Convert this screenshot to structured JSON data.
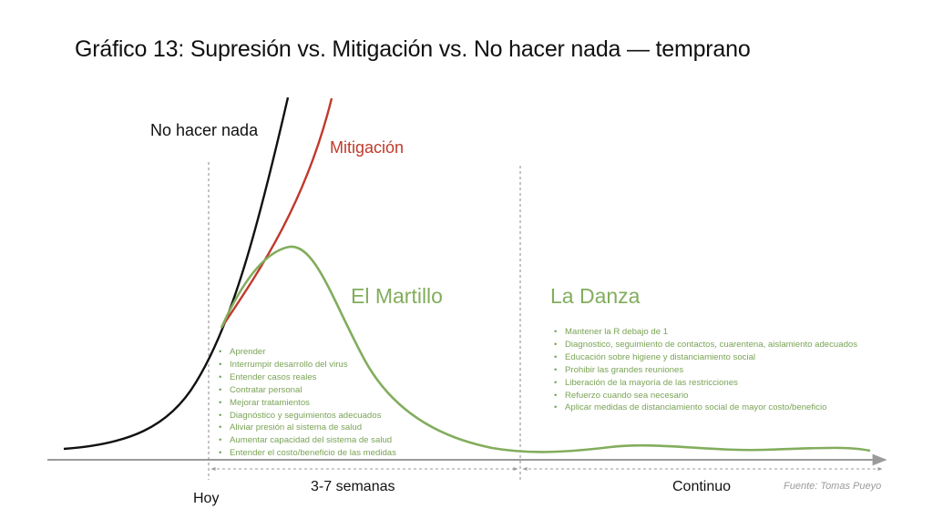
{
  "chart_data": {
    "type": "line",
    "title": "Gráfico 13: Supresión vs. Mitigación vs. No hacer nada — temprano",
    "series": [
      {
        "name": "No hacer nada",
        "color": "#111111"
      },
      {
        "name": "Mitigación",
        "color": "#c0392b"
      },
      {
        "name": "El Martillo / La Danza",
        "color": "#82ad5d"
      }
    ],
    "phases": [
      {
        "name": "El Martillo",
        "duration": "3-7 semanas",
        "items": [
          "Aprender",
          "Interrumpir desarrollo del virus",
          "Entender casos reales",
          "Contratar personal",
          "Mejorar tratamientos",
          "Diagnóstico y seguimientos adecuados",
          "Aliviar presión al sistema de salud",
          "Aumentar capacidad del sistema de salud",
          "Entender el costo/beneficio de las medidas"
        ]
      },
      {
        "name": "La Danza",
        "duration": "Continuo",
        "items": [
          "Mantener la R debajo de 1",
          "Diagnostico, seguimiento de contactos, cuarentena, aislamiento adecuados",
          "Educación sobre higiene y distanciamiento social",
          "Prohibir las grandes reuniones",
          "Liberación de la mayoría de las restricciones",
          "Refuerzo cuando sea necesario",
          "Aplicar medidas de distanciamiento social de mayor costo/beneficio"
        ]
      }
    ],
    "markers": {
      "start": "Hoy"
    },
    "source": "Fuente: Tomas Pueyo",
    "grid": false,
    "legend": "inline labels"
  }
}
